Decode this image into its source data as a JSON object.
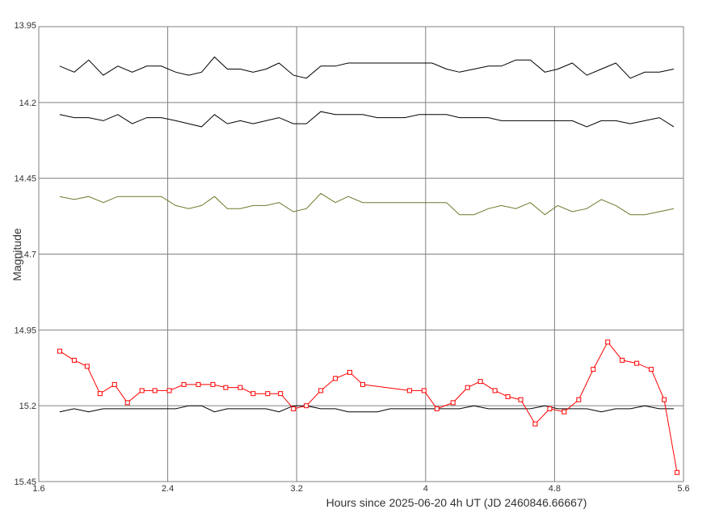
{
  "chart_data": {
    "type": "line",
    "xlabel": "Hours since 2025-06-20 4h UT (JD 2460846.66667)",
    "ylabel": "Magnitude",
    "xlim": [
      1.6,
      5.6
    ],
    "ylim": [
      13.95,
      15.45
    ],
    "y_inverted": true,
    "grid": true,
    "legend": "none",
    "x_ticks": [
      "1.6",
      "2.4",
      "3.2",
      "4",
      "4.8",
      "5.6"
    ],
    "y_ticks": [
      "13.95",
      "14.2",
      "14.45",
      "14.7",
      "14.95",
      "15.2",
      "15.45"
    ],
    "series": [
      {
        "color": "#000000",
        "marker": "none",
        "x": [
          1.73,
          1.82,
          1.91,
          2.0,
          2.09,
          2.18,
          2.27,
          2.36,
          2.45,
          2.53,
          2.61,
          2.69,
          2.77,
          2.85,
          2.93,
          3.01,
          3.09,
          3.18,
          3.26,
          3.35,
          3.44,
          3.52,
          3.61,
          3.7,
          3.78,
          3.87,
          3.96,
          4.04,
          4.13,
          4.21,
          4.3,
          4.39,
          4.47,
          4.56,
          4.65,
          4.74,
          4.82,
          4.91,
          5.0,
          5.09,
          5.18,
          5.27,
          5.36,
          5.45,
          5.54
        ],
        "y": [
          14.08,
          14.1,
          14.06,
          14.11,
          14.08,
          14.1,
          14.08,
          14.08,
          14.1,
          14.11,
          14.1,
          14.05,
          14.09,
          14.09,
          14.1,
          14.09,
          14.07,
          14.11,
          14.12,
          14.08,
          14.08,
          14.07,
          14.07,
          14.07,
          14.07,
          14.07,
          14.07,
          14.07,
          14.09,
          14.1,
          14.09,
          14.08,
          14.08,
          14.06,
          14.06,
          14.1,
          14.09,
          14.07,
          14.11,
          14.09,
          14.07,
          14.12,
          14.1,
          14.1,
          14.09
        ]
      },
      {
        "color": "#000000",
        "marker": "none",
        "x": [
          1.73,
          1.82,
          1.91,
          2.0,
          2.09,
          2.18,
          2.27,
          2.36,
          2.45,
          2.53,
          2.61,
          2.69,
          2.77,
          2.85,
          2.93,
          3.01,
          3.09,
          3.18,
          3.26,
          3.35,
          3.44,
          3.52,
          3.61,
          3.7,
          3.78,
          3.87,
          3.96,
          4.04,
          4.13,
          4.21,
          4.3,
          4.39,
          4.47,
          4.56,
          4.65,
          4.74,
          4.82,
          4.91,
          5.0,
          5.09,
          5.18,
          5.27,
          5.36,
          5.45,
          5.54
        ],
        "y": [
          14.24,
          14.25,
          14.25,
          14.26,
          14.24,
          14.27,
          14.25,
          14.25,
          14.26,
          14.27,
          14.28,
          14.24,
          14.27,
          14.26,
          14.27,
          14.26,
          14.25,
          14.27,
          14.27,
          14.23,
          14.24,
          14.24,
          14.24,
          14.25,
          14.25,
          14.25,
          14.24,
          14.24,
          14.24,
          14.25,
          14.25,
          14.25,
          14.26,
          14.26,
          14.26,
          14.26,
          14.26,
          14.26,
          14.28,
          14.26,
          14.26,
          14.27,
          14.26,
          14.25,
          14.28
        ]
      },
      {
        "color": "#6b7a2a",
        "marker": "none",
        "x": [
          1.73,
          1.82,
          1.91,
          2.0,
          2.09,
          2.18,
          2.27,
          2.36,
          2.45,
          2.53,
          2.61,
          2.69,
          2.77,
          2.85,
          2.93,
          3.01,
          3.09,
          3.18,
          3.26,
          3.35,
          3.44,
          3.52,
          3.61,
          3.7,
          3.78,
          3.87,
          3.96,
          4.04,
          4.13,
          4.21,
          4.3,
          4.39,
          4.47,
          4.56,
          4.65,
          4.74,
          4.82,
          4.91,
          5.0,
          5.09,
          5.18,
          5.27,
          5.36,
          5.45,
          5.54
        ],
        "y": [
          14.51,
          14.52,
          14.51,
          14.53,
          14.51,
          14.51,
          14.51,
          14.51,
          14.54,
          14.55,
          14.54,
          14.51,
          14.55,
          14.55,
          14.54,
          14.54,
          14.53,
          14.56,
          14.55,
          14.5,
          14.53,
          14.51,
          14.53,
          14.53,
          14.53,
          14.53,
          14.53,
          14.53,
          14.53,
          14.57,
          14.57,
          14.55,
          14.54,
          14.55,
          14.53,
          14.57,
          14.54,
          14.56,
          14.55,
          14.52,
          14.54,
          14.57,
          14.57,
          14.56,
          14.55
        ]
      },
      {
        "color": "#000000",
        "marker": "none",
        "x": [
          1.73,
          1.82,
          1.91,
          2.0,
          2.09,
          2.18,
          2.27,
          2.36,
          2.45,
          2.53,
          2.61,
          2.69,
          2.77,
          2.85,
          2.93,
          3.01,
          3.09,
          3.18,
          3.26,
          3.35,
          3.44,
          3.52,
          3.61,
          3.7,
          3.78,
          3.87,
          3.96,
          4.04,
          4.13,
          4.21,
          4.3,
          4.39,
          4.47,
          4.56,
          4.65,
          4.74,
          4.82,
          4.91,
          5.0,
          5.09,
          5.18,
          5.27,
          5.36,
          5.45,
          5.54
        ],
        "y": [
          15.22,
          15.21,
          15.22,
          15.21,
          15.21,
          15.21,
          15.21,
          15.21,
          15.21,
          15.2,
          15.2,
          15.22,
          15.21,
          15.21,
          15.21,
          15.21,
          15.22,
          15.2,
          15.2,
          15.21,
          15.21,
          15.22,
          15.22,
          15.22,
          15.21,
          15.21,
          15.21,
          15.21,
          15.21,
          15.21,
          15.2,
          15.21,
          15.21,
          15.21,
          15.21,
          15.2,
          15.21,
          15.21,
          15.21,
          15.22,
          15.21,
          15.21,
          15.2,
          15.21,
          15.21
        ]
      },
      {
        "color": "#ff0000",
        "marker": "square",
        "x": [
          1.73,
          1.82,
          1.9,
          1.98,
          2.07,
          2.15,
          2.24,
          2.32,
          2.41,
          2.5,
          2.59,
          2.68,
          2.76,
          2.85,
          2.93,
          3.02,
          3.1,
          3.18,
          3.26,
          3.35,
          3.44,
          3.53,
          3.61,
          3.9,
          3.99,
          4.07,
          4.17,
          4.26,
          4.34,
          4.43,
          4.51,
          4.59,
          4.68,
          4.77,
          4.86,
          4.95,
          5.04,
          5.13,
          5.22,
          5.31,
          5.4,
          5.48,
          5.56
        ],
        "y": [
          15.02,
          15.05,
          15.07,
          15.16,
          15.13,
          15.19,
          15.15,
          15.15,
          15.15,
          15.13,
          15.13,
          15.13,
          15.14,
          15.14,
          15.16,
          15.16,
          15.16,
          15.21,
          15.2,
          15.15,
          15.11,
          15.09,
          15.13,
          15.15,
          15.15,
          15.21,
          15.19,
          15.14,
          15.12,
          15.15,
          15.17,
          15.18,
          15.26,
          15.21,
          15.22,
          15.18,
          15.08,
          14.99,
          15.05,
          15.06,
          15.08,
          15.18,
          15.42
        ]
      }
    ]
  }
}
